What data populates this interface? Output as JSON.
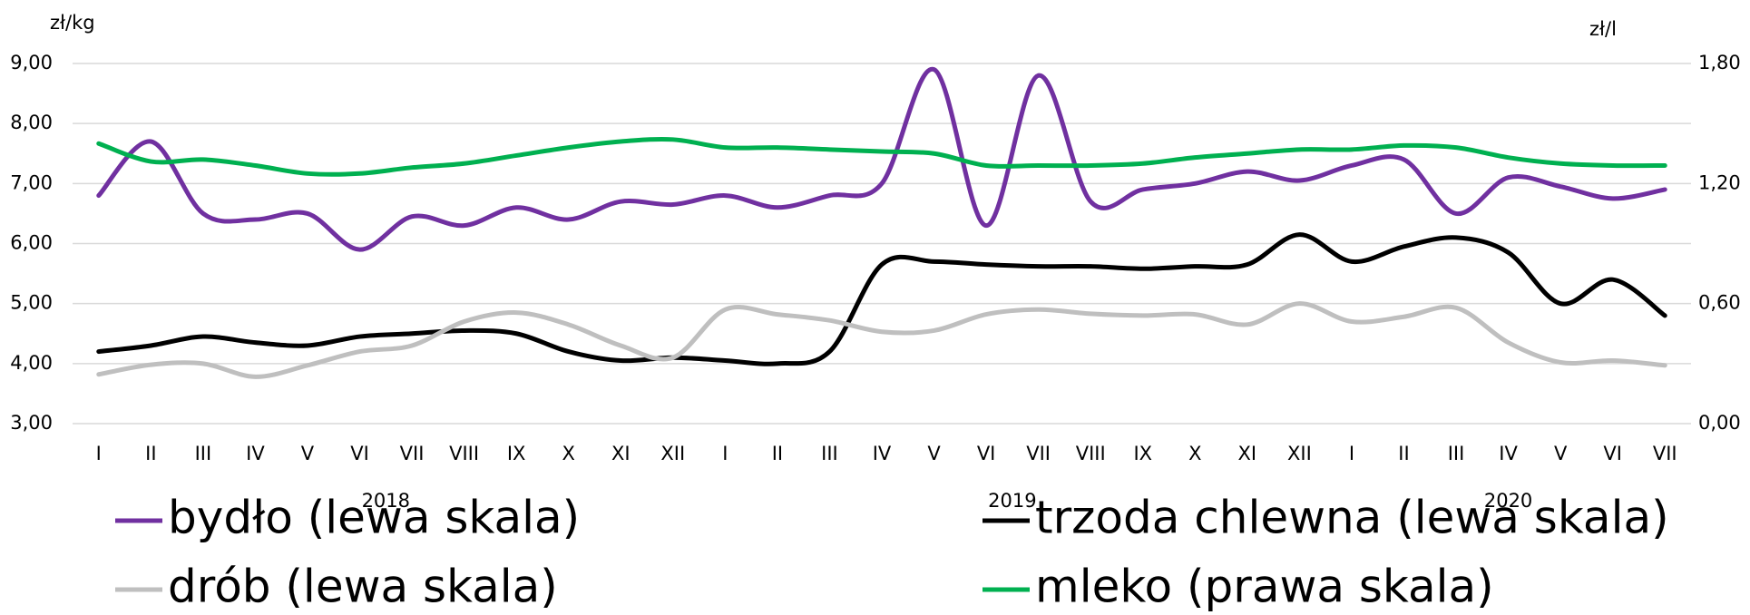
{
  "chart_data": {
    "type": "line",
    "y_label": "zł/kg",
    "y2_label": "zł/l",
    "categories": [
      "I",
      "II",
      "III",
      "IV",
      "V",
      "VI",
      "VII",
      "VIII",
      "IX",
      "X",
      "XI",
      "XII",
      "I",
      "II",
      "III",
      "IV",
      "V",
      "VI",
      "VII",
      "VIII",
      "IX",
      "X",
      "XI",
      "XII",
      "I",
      "II",
      "III",
      "IV",
      "V",
      "VI",
      "VII"
    ],
    "year_labels": [
      "2018",
      "2019",
      "2020"
    ],
    "ylim": [
      3,
      9
    ],
    "yticks": [
      {
        "value": 3,
        "label": "3,00"
      },
      {
        "value": 4,
        "label": "4,00"
      },
      {
        "value": 5,
        "label": "5,00"
      },
      {
        "value": 6,
        "label": "6,00"
      },
      {
        "value": 7,
        "label": "7,00"
      },
      {
        "value": 8,
        "label": "8,00"
      },
      {
        "value": 9,
        "label": "9,00"
      }
    ],
    "y2lim": [
      0,
      1.8
    ],
    "y2ticks": [
      {
        "value": 0,
        "label": "0,00"
      },
      {
        "value": 0.6,
        "label": "0,60"
      },
      {
        "value": 1.2,
        "label": "1,20"
      },
      {
        "value": 1.8,
        "label": "1,80"
      }
    ],
    "grid": true,
    "legend": "bottom",
    "series": [
      {
        "name": "bydło (lewa skala)",
        "color": "#7030a0",
        "values": [
          6.8,
          7.7,
          6.5,
          6.4,
          6.5,
          5.9,
          6.45,
          6.3,
          6.6,
          6.4,
          6.7,
          6.65,
          6.8,
          6.6,
          6.8,
          7.0,
          8.9,
          6.3,
          8.8,
          6.7,
          6.9,
          7.0,
          7.2,
          7.05,
          7.3,
          7.4,
          6.5,
          7.1,
          6.95,
          6.75,
          6.9
        ]
      },
      {
        "name": "trzoda chlewna (lewa skala)",
        "color": "#000000",
        "values": [
          4.2,
          4.3,
          4.45,
          4.35,
          4.3,
          4.45,
          4.5,
          4.55,
          4.5,
          4.2,
          4.05,
          4.1,
          4.05,
          4.0,
          4.2,
          5.65,
          5.7,
          5.65,
          5.62,
          5.62,
          5.58,
          5.62,
          5.65,
          6.15,
          5.7,
          5.95,
          6.1,
          5.85,
          5.0,
          5.4,
          4.8
        ]
      },
      {
        "name": "drób (lewa skala)",
        "color": "#bfbfbf",
        "values": [
          3.82,
          3.98,
          4.0,
          3.78,
          3.97,
          4.2,
          4.3,
          4.7,
          4.85,
          4.65,
          4.3,
          4.1,
          4.9,
          4.82,
          4.72,
          4.53,
          4.55,
          4.82,
          4.9,
          4.83,
          4.8,
          4.82,
          4.65,
          5.0,
          4.7,
          4.78,
          4.93,
          4.35,
          4.02,
          4.05,
          3.97
        ]
      },
      {
        "name": "mleko (prawa skala)",
        "color": "#00b050",
        "axis": "y2",
        "values": [
          1.4,
          1.31,
          1.32,
          1.29,
          1.25,
          1.25,
          1.28,
          1.3,
          1.34,
          1.38,
          1.41,
          1.42,
          1.38,
          1.38,
          1.37,
          1.36,
          1.35,
          1.29,
          1.29,
          1.29,
          1.3,
          1.33,
          1.35,
          1.37,
          1.37,
          1.39,
          1.38,
          1.33,
          1.3,
          1.29,
          1.29
        ]
      }
    ]
  }
}
